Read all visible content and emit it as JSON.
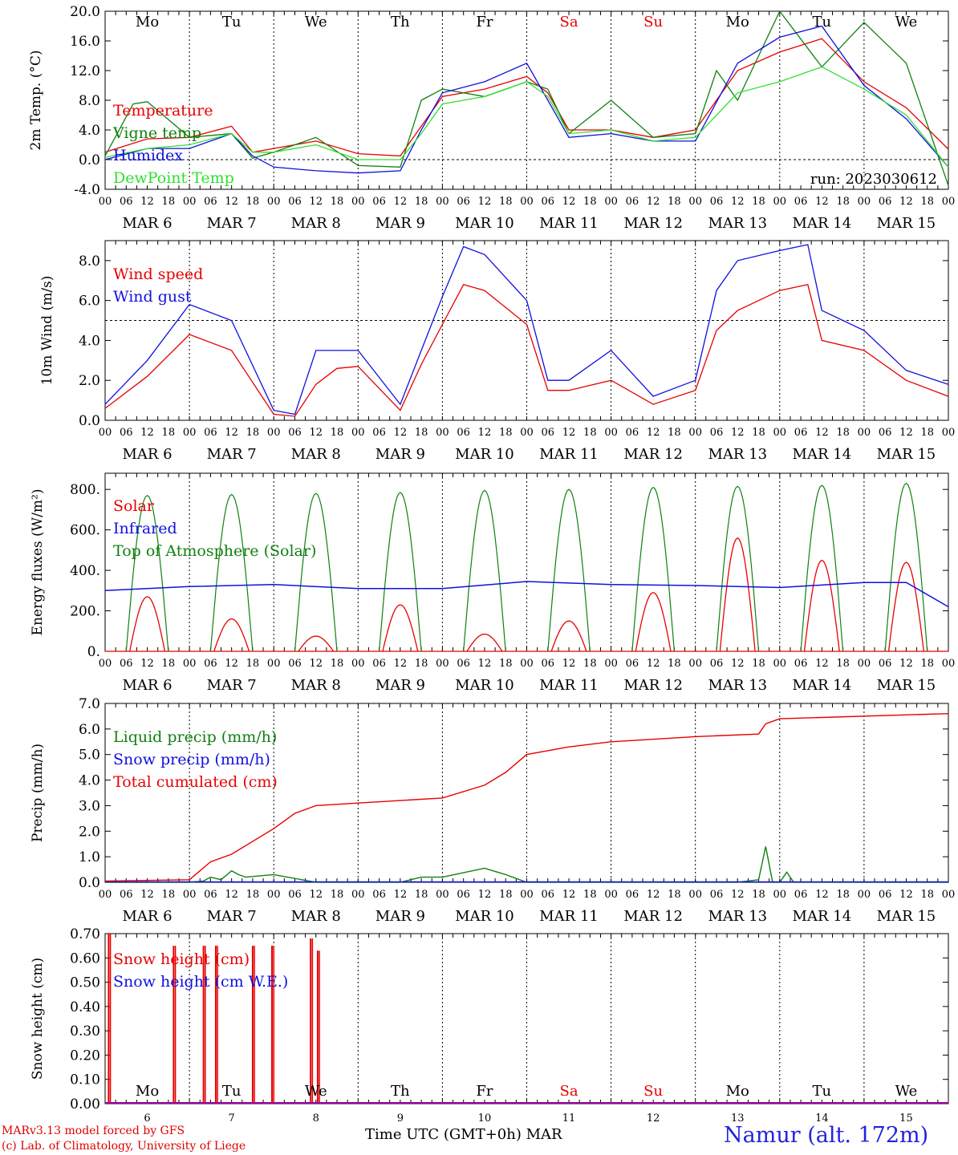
{
  "run_label": "run: 2023030612",
  "footer": {
    "model": "MARv3.13 model forced by GFS",
    "credit": "(c) Lab. of Climatology, University of Liege",
    "time_axis": "Time UTC (GMT+0h)",
    "month": "MAR",
    "station": "Namur (alt. 172m)"
  },
  "colors": {
    "red": "#e80000",
    "green": "#108010",
    "blue": "#1010e0",
    "light_green": "#30e030",
    "purple": "#a000a0",
    "grid": "#000000"
  },
  "days": {
    "weekdays": [
      "Mo",
      "Tu",
      "We",
      "Th",
      "Fr",
      "Sa",
      "Su",
      "Mo",
      "Tu",
      "We"
    ],
    "weekend_flags": [
      false,
      false,
      false,
      false,
      false,
      true,
      true,
      false,
      false,
      false
    ],
    "date_labels": [
      "MAR  6",
      "MAR  7",
      "MAR  8",
      "MAR  9",
      "MAR 10",
      "MAR 11",
      "MAR 12",
      "MAR 13",
      "MAR 14",
      "MAR 15"
    ],
    "day_numbers": [
      "6",
      "7",
      "8",
      "9",
      "10",
      "11",
      "12",
      "13",
      "14",
      "15"
    ],
    "hour_ticks": [
      "00",
      "06",
      "12",
      "18"
    ],
    "final_hour": "00"
  },
  "chart_data": [
    {
      "type": "line",
      "ylabel": "2m Temp. (°C)",
      "ylim": [
        -4.0,
        20.0
      ],
      "y_ticks": [
        "20.0",
        "16.0",
        "12.0",
        "8.0",
        "4.0",
        "0.0",
        "-4.0"
      ],
      "reference_line": 0.0,
      "x_unit": "hours since MAR 6 00 UTC",
      "series": [
        {
          "name": "Temperature",
          "color": "#e80000",
          "x": [
            0,
            12,
            24,
            36,
            42,
            48,
            60,
            72,
            84,
            90,
            96,
            108,
            120,
            126,
            132,
            144,
            156,
            168,
            180,
            192,
            204,
            216,
            228,
            240
          ],
          "values": [
            1.0,
            2.8,
            3.0,
            4.5,
            1.0,
            1.5,
            2.5,
            0.8,
            0.5,
            4.5,
            8.5,
            9.5,
            11.2,
            9.0,
            4.0,
            4.0,
            3.0,
            4.0,
            12.0,
            14.5,
            16.3,
            10.5,
            7.0,
            1.4
          ]
        },
        {
          "name": "Vigne temp",
          "color": "#108010",
          "x": [
            0,
            8,
            12,
            24,
            36,
            42,
            48,
            60,
            72,
            84,
            90,
            96,
            108,
            120,
            126,
            132,
            144,
            156,
            168,
            174,
            180,
            192,
            204,
            216,
            228,
            240
          ],
          "values": [
            0.5,
            7.5,
            7.8,
            3.0,
            3.5,
            0.2,
            1.0,
            3.0,
            -0.8,
            -1.0,
            8.0,
            9.5,
            8.5,
            10.5,
            9.5,
            3.5,
            8.0,
            3.0,
            3.5,
            12.0,
            8.0,
            20.0,
            12.5,
            18.5,
            13.0,
            -3.5
          ]
        },
        {
          "name": "Humidex",
          "color": "#1010e0",
          "x": [
            0,
            12,
            24,
            36,
            42,
            48,
            60,
            72,
            84,
            90,
            96,
            108,
            120,
            126,
            132,
            144,
            156,
            168,
            180,
            192,
            204,
            216,
            228,
            240
          ],
          "values": [
            0.0,
            1.5,
            1.5,
            3.5,
            0.5,
            -1.0,
            -1.5,
            -1.8,
            -1.5,
            4.0,
            9.0,
            10.5,
            13.0,
            8.0,
            3.0,
            3.5,
            2.5,
            2.5,
            13.0,
            16.5,
            18.0,
            10.0,
            5.5,
            -1.0
          ]
        },
        {
          "name": "DewPoint Temp",
          "color": "#30e030",
          "x": [
            0,
            12,
            24,
            36,
            42,
            48,
            60,
            72,
            84,
            90,
            96,
            108,
            120,
            126,
            132,
            144,
            156,
            168,
            180,
            192,
            204,
            216,
            228,
            240
          ],
          "values": [
            0.3,
            1.5,
            2.0,
            3.5,
            1.0,
            1.0,
            2.0,
            0.0,
            0.0,
            3.5,
            7.5,
            8.5,
            10.5,
            8.5,
            3.5,
            4.0,
            2.5,
            3.0,
            9.0,
            10.5,
            12.5,
            9.5,
            6.0,
            -1.0
          ]
        }
      ]
    },
    {
      "type": "line",
      "ylabel": "10m Wind (m/s)",
      "ylim": [
        0.0,
        9.0
      ],
      "y_ticks": [
        "8.0",
        "6.0",
        "4.0",
        "2.0",
        "0.0"
      ],
      "reference_line": 5.0,
      "series": [
        {
          "name": "Wind speed",
          "color": "#e80000",
          "x": [
            0,
            12,
            24,
            36,
            48,
            54,
            60,
            66,
            72,
            84,
            90,
            96,
            102,
            108,
            120,
            126,
            132,
            144,
            156,
            168,
            174,
            180,
            192,
            200,
            204,
            216,
            228,
            240
          ],
          "values": [
            0.6,
            2.2,
            4.3,
            3.5,
            0.3,
            0.2,
            1.8,
            2.6,
            2.7,
            0.5,
            2.8,
            4.8,
            6.8,
            6.5,
            4.8,
            1.5,
            1.5,
            2.0,
            0.8,
            1.5,
            4.5,
            5.5,
            6.5,
            6.8,
            4.0,
            3.5,
            2.0,
            1.2
          ]
        },
        {
          "name": "Wind gust",
          "color": "#1010e0",
          "x": [
            0,
            12,
            24,
            36,
            48,
            54,
            60,
            66,
            72,
            84,
            90,
            96,
            102,
            108,
            120,
            126,
            132,
            144,
            156,
            168,
            174,
            180,
            192,
            200,
            204,
            216,
            228,
            240
          ],
          "values": [
            0.8,
            3.0,
            5.8,
            5.0,
            0.5,
            0.3,
            3.5,
            3.5,
            3.5,
            0.8,
            3.5,
            6.2,
            8.7,
            8.3,
            6.0,
            2.0,
            2.0,
            3.5,
            1.2,
            2.0,
            6.5,
            8.0,
            8.5,
            8.8,
            5.5,
            4.5,
            2.5,
            1.8
          ]
        }
      ]
    },
    {
      "type": "line",
      "ylabel": "Energy fluxes (W/m²)",
      "ylim": [
        0,
        880
      ],
      "y_ticks": [
        "800.",
        "600.",
        "400.",
        "200.",
        "0."
      ],
      "series": [
        {
          "name": "Solar",
          "peak_hour": 12,
          "color": "#e80000",
          "daily_peaks": [
            270,
            160,
            75,
            230,
            85,
            150,
            290,
            560,
            450,
            440
          ]
        },
        {
          "name": "Infrared",
          "color": "#1010e0",
          "x": [
            0,
            24,
            48,
            72,
            96,
            120,
            144,
            168,
            192,
            216,
            228,
            240
          ],
          "values": [
            300,
            320,
            330,
            310,
            310,
            345,
            330,
            325,
            315,
            340,
            340,
            220
          ]
        },
        {
          "name": "Top of Atmosphere (Solar)",
          "peak_hour": 12,
          "color": "#108010",
          "daily_peaks": [
            770,
            775,
            780,
            785,
            795,
            800,
            810,
            815,
            820,
            830
          ]
        }
      ]
    },
    {
      "type": "line",
      "ylabel": "Precip (mm/h)",
      "ylim": [
        0.0,
        7.0
      ],
      "y_ticks": [
        "7.0",
        "6.0",
        "5.0",
        "4.0",
        "3.0",
        "2.0",
        "1.0",
        "0.0"
      ],
      "series": [
        {
          "name": "Liquid precip (mm/h)",
          "color": "#108010",
          "x": [
            0,
            24,
            28,
            30,
            33,
            36,
            38,
            40,
            48,
            60,
            84,
            90,
            96,
            108,
            114,
            120,
            132,
            144,
            168,
            180,
            186,
            188,
            190,
            192,
            194,
            196,
            198,
            240
          ],
          "values": [
            0,
            0,
            0.05,
            0.2,
            0.1,
            0.45,
            0.3,
            0.2,
            0.3,
            0,
            0,
            0.2,
            0.2,
            0.55,
            0.3,
            0,
            0,
            0,
            0,
            0,
            0.1,
            1.4,
            0,
            0,
            0.4,
            0,
            0,
            0
          ]
        },
        {
          "name": "Snow precip (mm/h)",
          "color": "#1010e0",
          "x": [
            0,
            240
          ],
          "values": [
            0.02,
            0.02
          ]
        },
        {
          "name": "Total cumulated (cm)",
          "color": "#e80000",
          "x": [
            0,
            24,
            30,
            36,
            48,
            54,
            60,
            72,
            96,
            108,
            114,
            120,
            132,
            144,
            168,
            186,
            188,
            192,
            240
          ],
          "values": [
            0.05,
            0.1,
            0.8,
            1.1,
            2.1,
            2.7,
            3.0,
            3.1,
            3.3,
            3.8,
            4.3,
            5.0,
            5.3,
            5.5,
            5.7,
            5.8,
            6.2,
            6.4,
            6.6
          ]
        }
      ]
    },
    {
      "type": "line",
      "ylabel": "Snow height (cm)",
      "ylim": [
        0.0,
        0.7
      ],
      "y_ticks": [
        "0.70",
        "0.60",
        "0.50",
        "0.40",
        "0.30",
        "0.20",
        "0.10",
        "0.00"
      ],
      "series": [
        {
          "name": "Snow height (cm)",
          "color": "#e80000",
          "spike_x": [
            1.0,
            19.5,
            28.0,
            31.5,
            42.0,
            47.5,
            58.5,
            60.5
          ],
          "spike_values": [
            0.7,
            0.65,
            0.65,
            0.65,
            0.65,
            0.65,
            0.68,
            0.63
          ]
        },
        {
          "name": "Snow height (cm W.E.)",
          "color": "#1010e0",
          "x": [
            0,
            240
          ],
          "values": [
            0.0,
            0.0
          ]
        }
      ]
    }
  ]
}
